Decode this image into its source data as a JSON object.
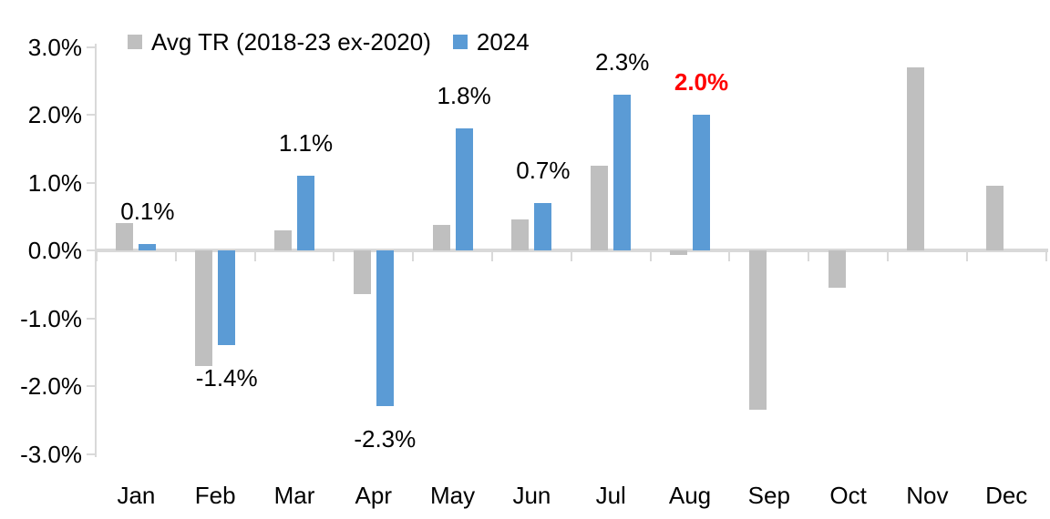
{
  "chart_data": {
    "type": "bar",
    "title": "",
    "categories": [
      "Jan",
      "Feb",
      "Mar",
      "Apr",
      "May",
      "Jun",
      "Jul",
      "Aug",
      "Sep",
      "Oct",
      "Nov",
      "Dec"
    ],
    "series": [
      {
        "name": "Avg TR (2018-23 ex-2020)",
        "color": "#BFBFBF",
        "values": [
          0.4,
          -1.7,
          0.3,
          -0.65,
          0.37,
          0.45,
          1.25,
          -0.07,
          -2.35,
          -0.55,
          2.7,
          0.95
        ]
      },
      {
        "name": "2024",
        "color": "#5B9BD5",
        "values": [
          0.1,
          -1.4,
          1.1,
          -2.3,
          1.8,
          0.7,
          2.3,
          2.0,
          null,
          null,
          null,
          null
        ]
      }
    ],
    "data_labels": [
      {
        "category": "Jan",
        "series": "2024",
        "text": "0.1%",
        "color": "#000000",
        "bold": false
      },
      {
        "category": "Feb",
        "series": "2024",
        "text": "-1.4%",
        "color": "#000000",
        "bold": false
      },
      {
        "category": "Mar",
        "series": "2024",
        "text": "1.1%",
        "color": "#000000",
        "bold": false
      },
      {
        "category": "Apr",
        "series": "2024",
        "text": "-2.3%",
        "color": "#000000",
        "bold": false
      },
      {
        "category": "May",
        "series": "2024",
        "text": "1.8%",
        "color": "#000000",
        "bold": false
      },
      {
        "category": "Jun",
        "series": "2024",
        "text": "0.7%",
        "color": "#000000",
        "bold": false
      },
      {
        "category": "Jul",
        "series": "2024",
        "text": "2.3%",
        "color": "#000000",
        "bold": false
      },
      {
        "category": "Aug",
        "series": "2024",
        "text": "2.0%",
        "color": "#FF0000",
        "bold": true
      }
    ],
    "y_axis": {
      "tick_labels": [
        "3.0%",
        "2.0%",
        "1.0%",
        "0.0%",
        "-1.0%",
        "-2.0%",
        "-3.0%"
      ],
      "tick_values": [
        3,
        2,
        1,
        0,
        -1,
        -2,
        -3
      ],
      "min": -3,
      "max": 3
    },
    "legend_position": "top",
    "grid": false,
    "axis_color": "#D9D9D9",
    "text_color": "#000000",
    "background": "#FFFFFF"
  }
}
